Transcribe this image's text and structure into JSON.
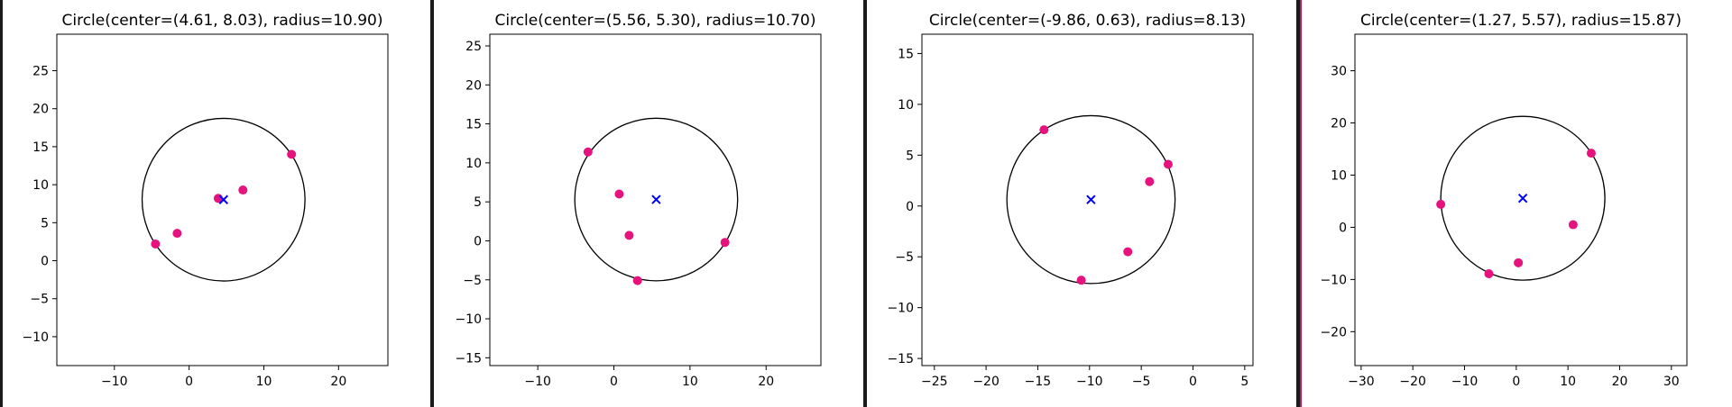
{
  "chart_data": [
    {
      "type": "scatter",
      "title": "Circle(center=(4.61, 8.03), radius=10.90)",
      "xlim": [
        -17.7,
        26.6
      ],
      "ylim": [
        -13.8,
        29.8
      ],
      "xticks": [
        -10,
        0,
        10,
        20
      ],
      "yticks": [
        -10,
        -5,
        0,
        5,
        10,
        15,
        20,
        25
      ],
      "circle": {
        "center": [
          4.61,
          8.03
        ],
        "radius": 10.9
      },
      "points": [
        {
          "x": 13.7,
          "y": 14.0
        },
        {
          "x": 7.2,
          "y": 9.3
        },
        {
          "x": 3.9,
          "y": 8.2
        },
        {
          "x": -1.6,
          "y": 3.6
        },
        {
          "x": -4.5,
          "y": 2.2
        }
      ]
    },
    {
      "type": "scatter",
      "title": "Circle(center=(5.56, 5.30), radius=10.70)",
      "xlim": [
        -16.3,
        27.2
      ],
      "ylim": [
        -16.0,
        26.5
      ],
      "xticks": [
        -10,
        0,
        10,
        20
      ],
      "yticks": [
        -15,
        -10,
        -5,
        0,
        5,
        10,
        15,
        20,
        25
      ],
      "circle": {
        "center": [
          5.56,
          5.3
        ],
        "radius": 10.7
      },
      "points": [
        {
          "x": -3.4,
          "y": 11.4
        },
        {
          "x": 0.7,
          "y": 6.0
        },
        {
          "x": 2.0,
          "y": 0.7
        },
        {
          "x": 14.6,
          "y": -0.2
        },
        {
          "x": 3.1,
          "y": -5.1
        }
      ]
    },
    {
      "type": "scatter",
      "title": "Circle(center=(-9.86, 0.63), radius=8.13)",
      "xlim": [
        -26.2,
        5.8
      ],
      "ylim": [
        -15.7,
        16.9
      ],
      "xticks": [
        -25,
        -20,
        -15,
        -10,
        -5,
        0,
        5
      ],
      "yticks": [
        -15,
        -10,
        -5,
        0,
        5,
        10,
        15
      ],
      "circle": {
        "center": [
          -9.86,
          0.63
        ],
        "radius": 8.13
      },
      "points": [
        {
          "x": -14.4,
          "y": 7.5
        },
        {
          "x": -2.4,
          "y": 4.1
        },
        {
          "x": -4.2,
          "y": 2.4
        },
        {
          "x": -6.3,
          "y": -4.5
        },
        {
          "x": -10.8,
          "y": -7.3
        }
      ]
    },
    {
      "type": "scatter",
      "title": "Circle(center=(1.27, 5.57), radius=15.87)",
      "xlim": [
        -31.2,
        33.0
      ],
      "ylim": [
        -26.5,
        37.0
      ],
      "xticks": [
        -30,
        -20,
        -10,
        0,
        10,
        20,
        30
      ],
      "yticks": [
        -20,
        -10,
        0,
        10,
        20,
        30
      ],
      "circle": {
        "center": [
          1.27,
          5.57
        ],
        "radius": 15.87
      },
      "points": [
        {
          "x": 14.5,
          "y": 14.2
        },
        {
          "x": -14.6,
          "y": 4.4
        },
        {
          "x": 11.0,
          "y": 0.5
        },
        {
          "x": 0.4,
          "y": -6.8
        },
        {
          "x": -5.3,
          "y": -8.9
        }
      ]
    }
  ],
  "colors": {
    "point": "#e6127e",
    "center_marker": "#0000ff",
    "circle": "#000000",
    "axes": "#000000",
    "separator": "#1a1a1a",
    "separator_accent": "#c4164f"
  }
}
